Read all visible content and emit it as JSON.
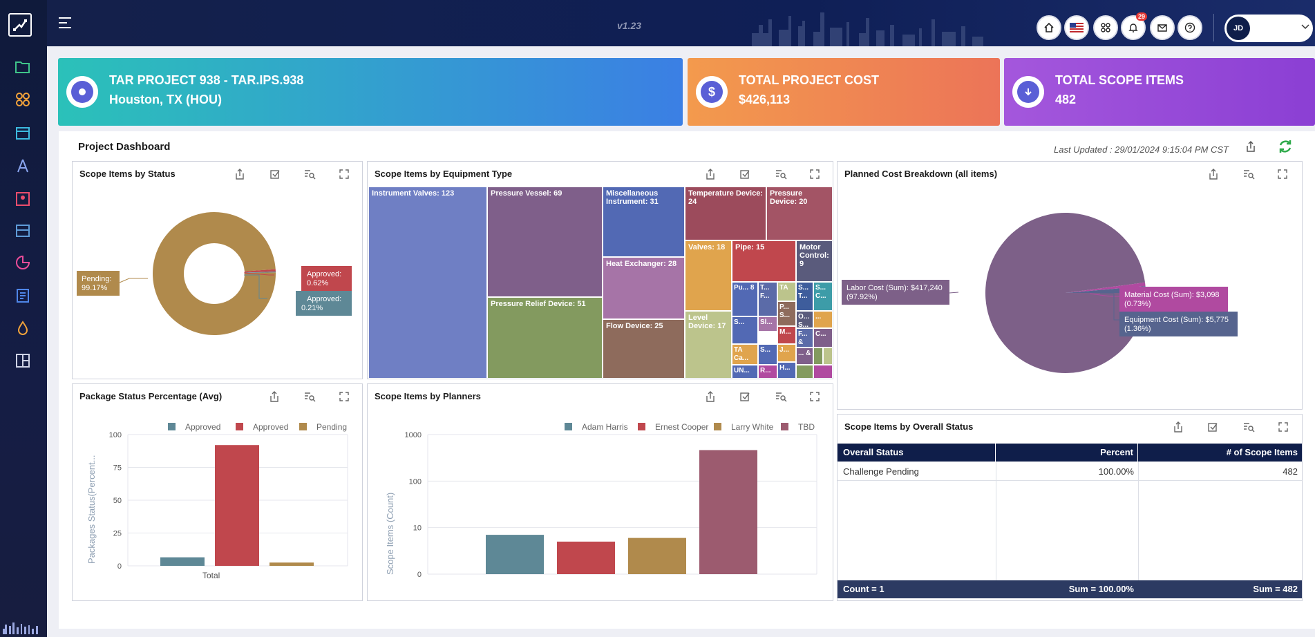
{
  "app": {
    "version": "v1.23"
  },
  "topbar": {
    "notif_count": "29",
    "user_initials": "JD"
  },
  "cards": [
    {
      "line1": "TAR PROJECT 938 - TAR.IPS.938",
      "line2": "Houston, TX (HOU)",
      "color_from": "#2bc1b9",
      "color_to": "#3b7fe4"
    },
    {
      "line1": "TOTAL PROJECT COST",
      "line2": "$426,113",
      "color_from": "#f39a4d",
      "color_to": "#ec7458"
    },
    {
      "line1": "TOTAL SCOPE ITEMS",
      "line2": "482",
      "color_from": "#a457dc",
      "color_to": "#8b3fd4"
    }
  ],
  "dashboard": {
    "title": "Project Dashboard",
    "last_updated": "Last Updated : 29/01/2024 9:15:04 PM CST"
  },
  "panels": {
    "status": {
      "title": "Scope Items by Status"
    },
    "equipment": {
      "title": "Scope Items by Equipment Type"
    },
    "cost": {
      "title": "Planned Cost Breakdown (all items)"
    },
    "package": {
      "title": "Package Status Percentage (Avg)"
    },
    "planners": {
      "title": "Scope Items by Planners"
    },
    "overall": {
      "title": "Scope Items by Overall Status"
    }
  },
  "chart_data": [
    {
      "type": "pie",
      "title": "Scope Items by Status",
      "donut": true,
      "slices": [
        {
          "label": "Pending:",
          "pct": "99.17%",
          "value": 99.17,
          "color": "#b08a4c"
        },
        {
          "label": "Approved:",
          "pct": "0.62%",
          "value": 0.62,
          "color": "#c0474d"
        },
        {
          "label": "Approved:",
          "pct": "0.21%",
          "value": 0.21,
          "color": "#5e8896"
        }
      ]
    },
    {
      "type": "treemap",
      "title": "Scope Items by Equipment Type",
      "items": [
        {
          "label": "Instrument Valves: 123",
          "value": 123,
          "color": "#6f7fc4"
        },
        {
          "label": "Pressure Vessel: 69",
          "value": 69,
          "color": "#7f5f8a"
        },
        {
          "label": "Pressure Relief Device: 51",
          "value": 51,
          "color": "#839a5f"
        },
        {
          "label": "Miscellaneous Instrument: 31",
          "value": 31,
          "color": "#5269b4"
        },
        {
          "label": "Heat Exchanger: 28",
          "value": 28,
          "color": "#a674a7"
        },
        {
          "label": "Flow Device: 25",
          "value": 25,
          "color": "#8e6b5c"
        },
        {
          "label": "Temperature Device: 24",
          "value": 24,
          "color": "#9c4b5c"
        },
        {
          "label": "Pressure Device: 20",
          "value": 20,
          "color": "#a35465"
        },
        {
          "label": "Valves: 18",
          "value": 18,
          "color": "#e0a44d"
        },
        {
          "label": "Level Device: 17",
          "value": 17,
          "color": "#bcc48c"
        },
        {
          "label": "Pipe: 15",
          "value": 15,
          "color": "#c0474d"
        },
        {
          "label": "Motor Control: 9",
          "value": 9,
          "color": "#5a5b7c"
        }
      ],
      "small_labels": [
        "Pu... 8",
        "T... F...",
        "TA",
        "S... T...",
        "S... C...",
        "Sl...",
        "P... S...",
        "O... S...",
        "...",
        "S...",
        "M...",
        "F... &",
        "C...",
        "TA Ca...",
        "S...",
        "J...",
        "... &",
        "UN...",
        "R...",
        "H..."
      ]
    },
    {
      "type": "pie",
      "title": "Planned Cost Breakdown (all items)",
      "slices": [
        {
          "label": "Labor Cost (Sum): $417,240",
          "pct": "(97.92%)",
          "value": 97.92,
          "color": "#7d6088"
        },
        {
          "label": "Material Cost (Sum): $3,098",
          "pct": "(0.73%)",
          "value": 0.73,
          "color": "#b04aa0"
        },
        {
          "label": "Equipment Cost (Sum): $5,775",
          "pct": "(1.36%)",
          "value": 1.36,
          "color": "#56648e"
        }
      ]
    },
    {
      "type": "bar",
      "title": "Package Status Percentage (Avg)",
      "categories": [
        "Total"
      ],
      "ylabel": "Packages Status(Percent...",
      "ylim": [
        0,
        100
      ],
      "yticks": [
        "100",
        "75",
        "50",
        "25",
        "0"
      ],
      "series": [
        {
          "name": "Approved",
          "values": [
            6.5
          ],
          "color": "#5e8896"
        },
        {
          "name": "Approved",
          "values": [
            92
          ],
          "color": "#c0474d"
        },
        {
          "name": "Pending",
          "values": [
            2.5
          ],
          "color": "#b08a4c"
        }
      ]
    },
    {
      "type": "bar",
      "title": "Scope Items by Planners",
      "ylabel": "Scope Items (Count)",
      "yscale": "log",
      "yticks": [
        "1000",
        "100",
        "10",
        "0"
      ],
      "series": [
        {
          "name": "Adam Harris",
          "values": [
            7
          ],
          "color": "#5e8896"
        },
        {
          "name": "Ernest Cooper",
          "values": [
            5
          ],
          "color": "#c0474d"
        },
        {
          "name": "Larry White",
          "values": [
            6
          ],
          "color": "#b08a4c"
        },
        {
          "name": "TBD",
          "values": [
            464
          ],
          "color": "#9c5b6f"
        }
      ]
    },
    {
      "type": "table",
      "title": "Scope Items by Overall Status",
      "columns": [
        "Overall Status",
        "Percent",
        "# of Scope Items"
      ],
      "rows": [
        [
          "Challenge Pending",
          "100.00%",
          "482"
        ]
      ],
      "footer": [
        "Count = 1",
        "Sum = 100.00%",
        "Sum = 482"
      ]
    }
  ]
}
